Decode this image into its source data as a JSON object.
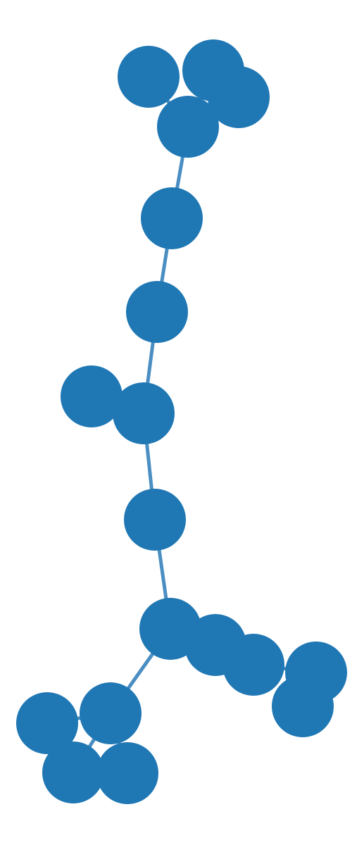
{
  "graph": {
    "type": "node-link",
    "node_color": "#1f77b4",
    "edge_color": "#4a8ec2",
    "nodes": [
      {
        "id": "n1"
      },
      {
        "id": "n2"
      },
      {
        "id": "n3"
      },
      {
        "id": "n4"
      },
      {
        "id": "n5"
      },
      {
        "id": "n6"
      },
      {
        "id": "n7"
      },
      {
        "id": "n8"
      },
      {
        "id": "n9"
      },
      {
        "id": "n10"
      },
      {
        "id": "n11"
      },
      {
        "id": "n12"
      },
      {
        "id": "n13"
      },
      {
        "id": "n14"
      },
      {
        "id": "n15"
      },
      {
        "id": "n16"
      },
      {
        "id": "n17"
      },
      {
        "id": "n18"
      },
      {
        "id": "n19"
      },
      {
        "id": "n20"
      }
    ],
    "edges": [
      [
        "n1",
        "n4"
      ],
      [
        "n2",
        "n4"
      ],
      [
        "n3",
        "n4"
      ],
      [
        "n4",
        "n5"
      ],
      [
        "n5",
        "n6"
      ],
      [
        "n6",
        "n7"
      ],
      [
        "n7",
        "n8"
      ],
      [
        "n7",
        "n9"
      ],
      [
        "n9",
        "n10"
      ],
      [
        "n10",
        "n11"
      ],
      [
        "n10",
        "n15"
      ],
      [
        "n11",
        "n12"
      ],
      [
        "n12",
        "n13"
      ],
      [
        "n13",
        "n14"
      ],
      [
        "n15",
        "n16"
      ],
      [
        "n15",
        "n17"
      ],
      [
        "n15",
        "n18"
      ]
    ]
  }
}
